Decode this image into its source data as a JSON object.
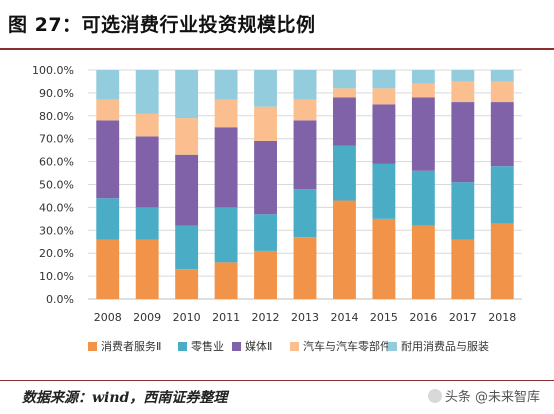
{
  "header": {
    "title": "图 27：可选消费行业投资规模比例"
  },
  "footer": {
    "source": "数据来源：wind，西南证券整理",
    "watermark": "头条 @未来智库"
  },
  "chart_data": {
    "type": "bar",
    "stacked": true,
    "percent": true,
    "categories": [
      "2008",
      "2009",
      "2010",
      "2011",
      "2012",
      "2013",
      "2014",
      "2015",
      "2016",
      "2017",
      "2018"
    ],
    "ylim": [
      0,
      100
    ],
    "yticks": [
      "0.0%",
      "10.0%",
      "20.0%",
      "30.0%",
      "40.0%",
      "50.0%",
      "60.0%",
      "70.0%",
      "80.0%",
      "90.0%",
      "100.0%"
    ],
    "grid": true,
    "legend_position": "bottom",
    "series": [
      {
        "name": "消费者服务Ⅱ",
        "color": "#F2934A",
        "values": [
          26,
          26,
          13,
          16,
          21,
          27,
          43,
          35,
          32,
          26,
          33
        ]
      },
      {
        "name": "零售业",
        "color": "#4BACC6",
        "values": [
          18,
          14,
          19,
          24,
          16,
          21,
          24,
          24,
          24,
          25,
          25
        ]
      },
      {
        "name": "媒体Ⅱ",
        "color": "#7F62A8",
        "values": [
          34,
          31,
          31,
          35,
          32,
          30,
          21,
          26,
          32,
          35,
          28
        ]
      },
      {
        "name": "汽车与汽车零部件",
        "color": "#FBBF8F",
        "values": [
          9,
          10,
          16,
          12,
          15,
          9,
          4,
          7,
          6,
          9,
          9
        ]
      },
      {
        "name": "耐用消费品与服装",
        "color": "#93CDDD",
        "values": [
          13,
          19,
          21,
          13,
          16,
          13,
          8,
          8,
          6,
          5,
          5
        ]
      }
    ]
  }
}
